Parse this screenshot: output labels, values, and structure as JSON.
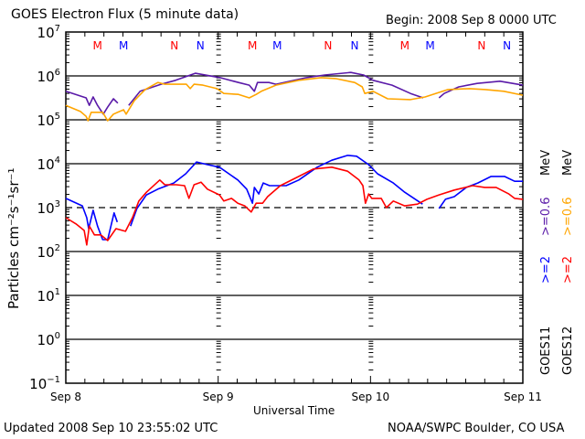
{
  "chart_data": {
    "type": "line",
    "title": "GOES Electron Flux (5 minute data)",
    "begin_label": "Begin: 2008 Sep 8 0000 UTC",
    "xlabel": "Universal Time",
    "ylabel": "Particles cm⁻²s⁻¹sr⁻¹",
    "x_unit": "hours since 2008 Sep 8 0000 UTC",
    "xlim": [
      0,
      72
    ],
    "x_ticks": [
      {
        "hour": 0,
        "label": "Sep 8"
      },
      {
        "hour": 24,
        "label": "Sep 9"
      },
      {
        "hour": 48,
        "label": "Sep 10"
      },
      {
        "hour": 72,
        "label": "Sep 11"
      }
    ],
    "y_scale": "log10",
    "ylim_log10": [
      -1,
      7
    ],
    "y_ticks": [
      {
        "base": "10",
        "exp": "7"
      },
      {
        "base": "10",
        "exp": "6"
      },
      {
        "base": "10",
        "exp": "5"
      },
      {
        "base": "10",
        "exp": "4"
      },
      {
        "base": "10",
        "exp": "3"
      },
      {
        "base": "10",
        "exp": "2"
      },
      {
        "base": "10",
        "exp": "1"
      },
      {
        "base": "10",
        "exp": "0"
      },
      {
        "base": "10",
        "exp": "-1"
      }
    ],
    "grid": "horizontal lines at each decade; 10^3 dashed",
    "series": [
      {
        "name": "GOES11 >=0.6 MeV",
        "color": "#5a1aa8",
        "points": [
          [
            0,
            5.65
          ],
          [
            3.2,
            5.5
          ],
          [
            3.7,
            5.33
          ],
          [
            4.3,
            5.52
          ],
          [
            5.0,
            5.33
          ],
          [
            5.9,
            5.13
          ],
          [
            6.6,
            5.29
          ],
          [
            7.5,
            5.48
          ],
          [
            8.2,
            5.38
          ],
          null,
          [
            9.9,
            5.33
          ],
          [
            11.7,
            5.65
          ],
          [
            15.0,
            5.81
          ],
          [
            17.3,
            5.9
          ],
          [
            20.4,
            6.06
          ],
          [
            24.3,
            5.96
          ],
          [
            27.2,
            5.85
          ],
          [
            28.9,
            5.79
          ],
          [
            29.7,
            5.65
          ],
          [
            30.2,
            5.85
          ],
          [
            32.0,
            5.85
          ],
          [
            33.1,
            5.81
          ],
          [
            37.9,
            5.96
          ],
          [
            40.8,
            6.02
          ],
          [
            44.9,
            6.08
          ],
          [
            46.9,
            6.02
          ],
          [
            48.4,
            5.9
          ],
          [
            51.4,
            5.79
          ],
          [
            54.3,
            5.6
          ],
          [
            56.3,
            5.5
          ],
          null,
          [
            58.8,
            5.5
          ],
          [
            59.6,
            5.6
          ],
          [
            61.9,
            5.75
          ],
          [
            64.8,
            5.83
          ],
          [
            68.4,
            5.88
          ],
          [
            72,
            5.79
          ]
        ]
      },
      {
        "name": "GOES12 >=0.6 MeV",
        "color": "#ffa500",
        "points": [
          [
            0,
            5.33
          ],
          [
            2.3,
            5.19
          ],
          [
            3.2,
            5.08
          ],
          [
            3.5,
            4.98
          ],
          [
            4.0,
            5.17
          ],
          [
            5.8,
            5.17
          ],
          [
            6.6,
            4.98
          ],
          [
            7.5,
            5.13
          ],
          [
            9.1,
            5.23
          ],
          [
            9.5,
            5.13
          ],
          [
            10.8,
            5.44
          ],
          [
            12.5,
            5.69
          ],
          [
            14.5,
            5.85
          ],
          [
            15.6,
            5.81
          ],
          [
            19.0,
            5.81
          ],
          [
            19.6,
            5.71
          ],
          [
            20.2,
            5.81
          ],
          [
            21.6,
            5.79
          ],
          [
            23.8,
            5.71
          ],
          [
            24.9,
            5.6
          ],
          [
            27.2,
            5.58
          ],
          [
            28.9,
            5.5
          ],
          [
            30.0,
            5.58
          ],
          [
            30.8,
            5.65
          ],
          [
            33.1,
            5.79
          ],
          [
            36.7,
            5.9
          ],
          [
            40.2,
            5.96
          ],
          [
            42.5,
            5.94
          ],
          [
            45.5,
            5.85
          ],
          [
            46.7,
            5.75
          ],
          [
            47.1,
            5.6
          ],
          [
            48.4,
            5.65
          ],
          [
            50.7,
            5.48
          ],
          [
            54.3,
            5.46
          ],
          [
            56.6,
            5.52
          ],
          [
            60.2,
            5.69
          ],
          [
            63.6,
            5.71
          ],
          [
            66.1,
            5.69
          ],
          [
            69.0,
            5.65
          ],
          [
            72,
            5.56
          ]
        ]
      },
      {
        "name": "GOES11 >=2 MeV",
        "color": "#0000ff",
        "points": [
          [
            0,
            3.21
          ],
          [
            2.6,
            3.04
          ],
          [
            3.3,
            2.77
          ],
          [
            3.6,
            2.52
          ],
          [
            4.3,
            2.94
          ],
          [
            5.0,
            2.58
          ],
          [
            5.8,
            2.27
          ],
          [
            6.6,
            2.27
          ],
          [
            7.6,
            2.88
          ],
          [
            8.1,
            2.67
          ],
          null,
          [
            10.2,
            2.58
          ],
          [
            11.2,
            2.98
          ],
          [
            12.7,
            3.29
          ],
          [
            14.5,
            3.42
          ],
          [
            17.0,
            3.56
          ],
          [
            18.9,
            3.77
          ],
          [
            20.6,
            4.04
          ],
          [
            22.3,
            3.98
          ],
          [
            24.2,
            3.92
          ],
          [
            27.1,
            3.63
          ],
          [
            28.5,
            3.42
          ],
          [
            29.4,
            3.1
          ],
          [
            29.7,
            3.46
          ],
          [
            30.4,
            3.31
          ],
          [
            31.1,
            3.56
          ],
          [
            32.1,
            3.5
          ],
          [
            34.7,
            3.5
          ],
          [
            36.7,
            3.63
          ],
          [
            39.6,
            3.92
          ],
          [
            41.9,
            4.08
          ],
          [
            44.4,
            4.19
          ],
          [
            45.8,
            4.17
          ],
          [
            47.7,
            3.98
          ],
          [
            49.1,
            3.77
          ],
          [
            51.6,
            3.56
          ],
          [
            53.4,
            3.35
          ],
          [
            56.2,
            3.08
          ],
          null,
          [
            58.8,
            2.98
          ],
          [
            59.8,
            3.19
          ],
          [
            61.2,
            3.25
          ],
          [
            63.1,
            3.46
          ],
          [
            64.9,
            3.56
          ],
          [
            67.0,
            3.71
          ],
          [
            69.1,
            3.71
          ],
          [
            70.7,
            3.6
          ],
          [
            72,
            3.6
          ]
        ]
      },
      {
        "name": "GOES12 >=2 MeV",
        "color": "#ff0000",
        "points": [
          [
            0,
            2.77
          ],
          [
            1.6,
            2.63
          ],
          [
            2.9,
            2.48
          ],
          [
            3.3,
            2.15
          ],
          [
            3.7,
            2.58
          ],
          [
            4.5,
            2.38
          ],
          [
            5.5,
            2.38
          ],
          [
            6.6,
            2.25
          ],
          [
            7.9,
            2.52
          ],
          [
            9.4,
            2.46
          ],
          [
            10.5,
            2.77
          ],
          [
            11.5,
            3.15
          ],
          [
            12.7,
            3.35
          ],
          [
            14.8,
            3.63
          ],
          [
            15.6,
            3.52
          ],
          [
            17.4,
            3.52
          ],
          [
            18.7,
            3.5
          ],
          [
            19.4,
            3.21
          ],
          [
            20.2,
            3.52
          ],
          [
            21.3,
            3.58
          ],
          [
            22.3,
            3.42
          ],
          [
            24.2,
            3.29
          ],
          [
            24.9,
            3.15
          ],
          [
            26.1,
            3.21
          ],
          [
            27.1,
            3.1
          ],
          [
            28.2,
            3.04
          ],
          [
            29.2,
            2.9
          ],
          [
            30.0,
            3.1
          ],
          [
            31.0,
            3.1
          ],
          [
            31.8,
            3.25
          ],
          [
            33.8,
            3.5
          ],
          [
            36.7,
            3.71
          ],
          [
            39.0,
            3.88
          ],
          [
            41.9,
            3.92
          ],
          [
            44.4,
            3.83
          ],
          [
            46.2,
            3.63
          ],
          [
            46.8,
            3.5
          ],
          [
            47.2,
            3.1
          ],
          [
            47.7,
            3.31
          ],
          [
            48.2,
            3.21
          ],
          [
            49.7,
            3.21
          ],
          [
            50.5,
            3.0
          ],
          [
            51.6,
            3.15
          ],
          [
            53.4,
            3.04
          ],
          [
            55.4,
            3.08
          ],
          [
            56.9,
            3.19
          ],
          [
            58.8,
            3.29
          ],
          [
            61.2,
            3.4
          ],
          [
            64.1,
            3.5
          ],
          [
            66.0,
            3.46
          ],
          [
            67.8,
            3.46
          ],
          [
            69.8,
            3.31
          ],
          [
            70.7,
            3.21
          ],
          [
            72,
            3.19
          ]
        ]
      }
    ],
    "markers": [
      {
        "label": "M",
        "color": "#ff0000",
        "hour": 5.0
      },
      {
        "label": "M",
        "color": "#0000ff",
        "hour": 9.1
      },
      {
        "label": "N",
        "color": "#ff0000",
        "hour": 17.1
      },
      {
        "label": "N",
        "color": "#0000ff",
        "hour": 21.2
      },
      {
        "label": "M",
        "color": "#ff0000",
        "hour": 29.4
      },
      {
        "label": "M",
        "color": "#0000ff",
        "hour": 33.3
      },
      {
        "label": "N",
        "color": "#ff0000",
        "hour": 41.3
      },
      {
        "label": "N",
        "color": "#0000ff",
        "hour": 45.5
      },
      {
        "label": "M",
        "color": "#ff0000",
        "hour": 53.4
      },
      {
        "label": "M",
        "color": "#0000ff",
        "hour": 57.4
      },
      {
        "label": "N",
        "color": "#ff0000",
        "hour": 65.5
      },
      {
        "label": "N",
        "color": "#0000ff",
        "hour": 69.5
      }
    ],
    "legend": {
      "goes11": {
        "sat": "GOES11",
        "high": ">=2",
        "low": ">=0.6",
        "unit": "MeV",
        "high_color": "#0000ff",
        "low_color": "#5a1aa8"
      },
      "goes12": {
        "sat": "GOES12",
        "high": ">=2",
        "low": ">=0.6",
        "unit": "MeV",
        "high_color": "#ff0000",
        "low_color": "#ffa500"
      }
    }
  },
  "footer": {
    "updated": "Updated 2008 Sep 10 23:55:02 UTC",
    "credit": "NOAA/SWPC Boulder, CO USA"
  }
}
